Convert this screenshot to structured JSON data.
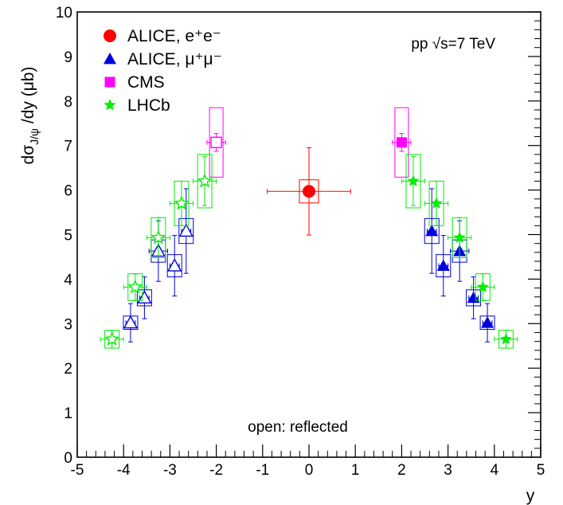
{
  "chart_data": {
    "type": "scatter",
    "xlabel": "y",
    "ylabel": "dσ J/ψ /dy (μb)",
    "xlim": [
      -5,
      5
    ],
    "ylim": [
      0,
      10
    ],
    "xticks": [
      -5,
      -4,
      -3,
      -2,
      -1,
      0,
      1,
      2,
      3,
      4,
      5
    ],
    "yticks": [
      0,
      1,
      2,
      3,
      4,
      5,
      6,
      7,
      8,
      9,
      10
    ],
    "legend_position": "top-left",
    "annotations": {
      "energy": "pp  √s=7 TeV",
      "note": "open: reflected"
    },
    "series": [
      {
        "name": "ALICE, e⁺e⁻",
        "legend_label": "ALICE, e⁺e⁻",
        "marker": "circle",
        "color": "#ff0000",
        "points": [
          {
            "x": 0.0,
            "y": 5.97,
            "xerr": 0.9,
            "yerr": 0.98,
            "syst": 0.26,
            "open": false
          }
        ]
      },
      {
        "name": "ALICE, μ⁺μ⁻",
        "legend_label": "ALICE, μ⁺μ⁻",
        "marker": "triangle",
        "color": "#0000dd",
        "points": [
          {
            "x": 2.65,
            "y": 5.08,
            "xerr": 0.1,
            "yerr": 0.95,
            "syst": 0.28,
            "open": false
          },
          {
            "x": 2.9,
            "y": 4.3,
            "xerr": 0.1,
            "yerr": 0.68,
            "syst": 0.25,
            "open": false
          },
          {
            "x": 3.25,
            "y": 4.63,
            "xerr": 0.2,
            "yerr": 0.68,
            "syst": 0.25,
            "open": false
          },
          {
            "x": 3.55,
            "y": 3.58,
            "xerr": 0.1,
            "yerr": 0.47,
            "syst": 0.18,
            "open": false
          },
          {
            "x": 3.85,
            "y": 3.02,
            "xerr": 0.1,
            "yerr": 0.43,
            "syst": 0.15,
            "open": false
          },
          {
            "x": -2.65,
            "y": 5.08,
            "xerr": 0.1,
            "yerr": 0.95,
            "syst": 0.28,
            "open": true
          },
          {
            "x": -2.9,
            "y": 4.3,
            "xerr": 0.1,
            "yerr": 0.68,
            "syst": 0.25,
            "open": true
          },
          {
            "x": -3.25,
            "y": 4.63,
            "xerr": 0.2,
            "yerr": 0.68,
            "syst": 0.25,
            "open": true
          },
          {
            "x": -3.55,
            "y": 3.58,
            "xerr": 0.1,
            "yerr": 0.47,
            "syst": 0.18,
            "open": true
          },
          {
            "x": -3.85,
            "y": 3.02,
            "xerr": 0.1,
            "yerr": 0.43,
            "syst": 0.15,
            "open": true
          }
        ]
      },
      {
        "name": "CMS",
        "legend_label": "CMS",
        "marker": "square",
        "color": "#ff00ff",
        "points": [
          {
            "x": 2.0,
            "y": 7.07,
            "xerr": 0.2,
            "yerr": 0.2,
            "syst": 0.78,
            "open": false
          },
          {
            "x": -2.0,
            "y": 7.07,
            "xerr": 0.2,
            "yerr": 0.2,
            "syst": 0.78,
            "open": true
          }
        ]
      },
      {
        "name": "LHCb",
        "legend_label": "LHCb",
        "marker": "star",
        "color": "#00ee00",
        "points": [
          {
            "x": 2.25,
            "y": 6.2,
            "xerr": 0.25,
            "yerr": 0.55,
            "syst": 0.6,
            "open": false
          },
          {
            "x": 2.75,
            "y": 5.7,
            "xerr": 0.25,
            "yerr": 0.5,
            "syst": 0.5,
            "open": false
          },
          {
            "x": 3.25,
            "y": 4.93,
            "xerr": 0.25,
            "yerr": 0.45,
            "syst": 0.45,
            "open": false
          },
          {
            "x": 3.75,
            "y": 3.82,
            "xerr": 0.25,
            "yerr": 0.3,
            "syst": 0.3,
            "open": false
          },
          {
            "x": 4.25,
            "y": 2.65,
            "xerr": 0.25,
            "yerr": 0.2,
            "syst": 0.2,
            "open": false
          },
          {
            "x": -2.25,
            "y": 6.2,
            "xerr": 0.25,
            "yerr": 0.55,
            "syst": 0.6,
            "open": true
          },
          {
            "x": -2.75,
            "y": 5.7,
            "xerr": 0.25,
            "yerr": 0.5,
            "syst": 0.5,
            "open": true
          },
          {
            "x": -3.25,
            "y": 4.93,
            "xerr": 0.25,
            "yerr": 0.45,
            "syst": 0.45,
            "open": true
          },
          {
            "x": -3.75,
            "y": 3.82,
            "xerr": 0.25,
            "yerr": 0.3,
            "syst": 0.3,
            "open": true
          },
          {
            "x": -4.25,
            "y": 2.65,
            "xerr": 0.25,
            "yerr": 0.2,
            "syst": 0.2,
            "open": true
          }
        ]
      }
    ]
  }
}
